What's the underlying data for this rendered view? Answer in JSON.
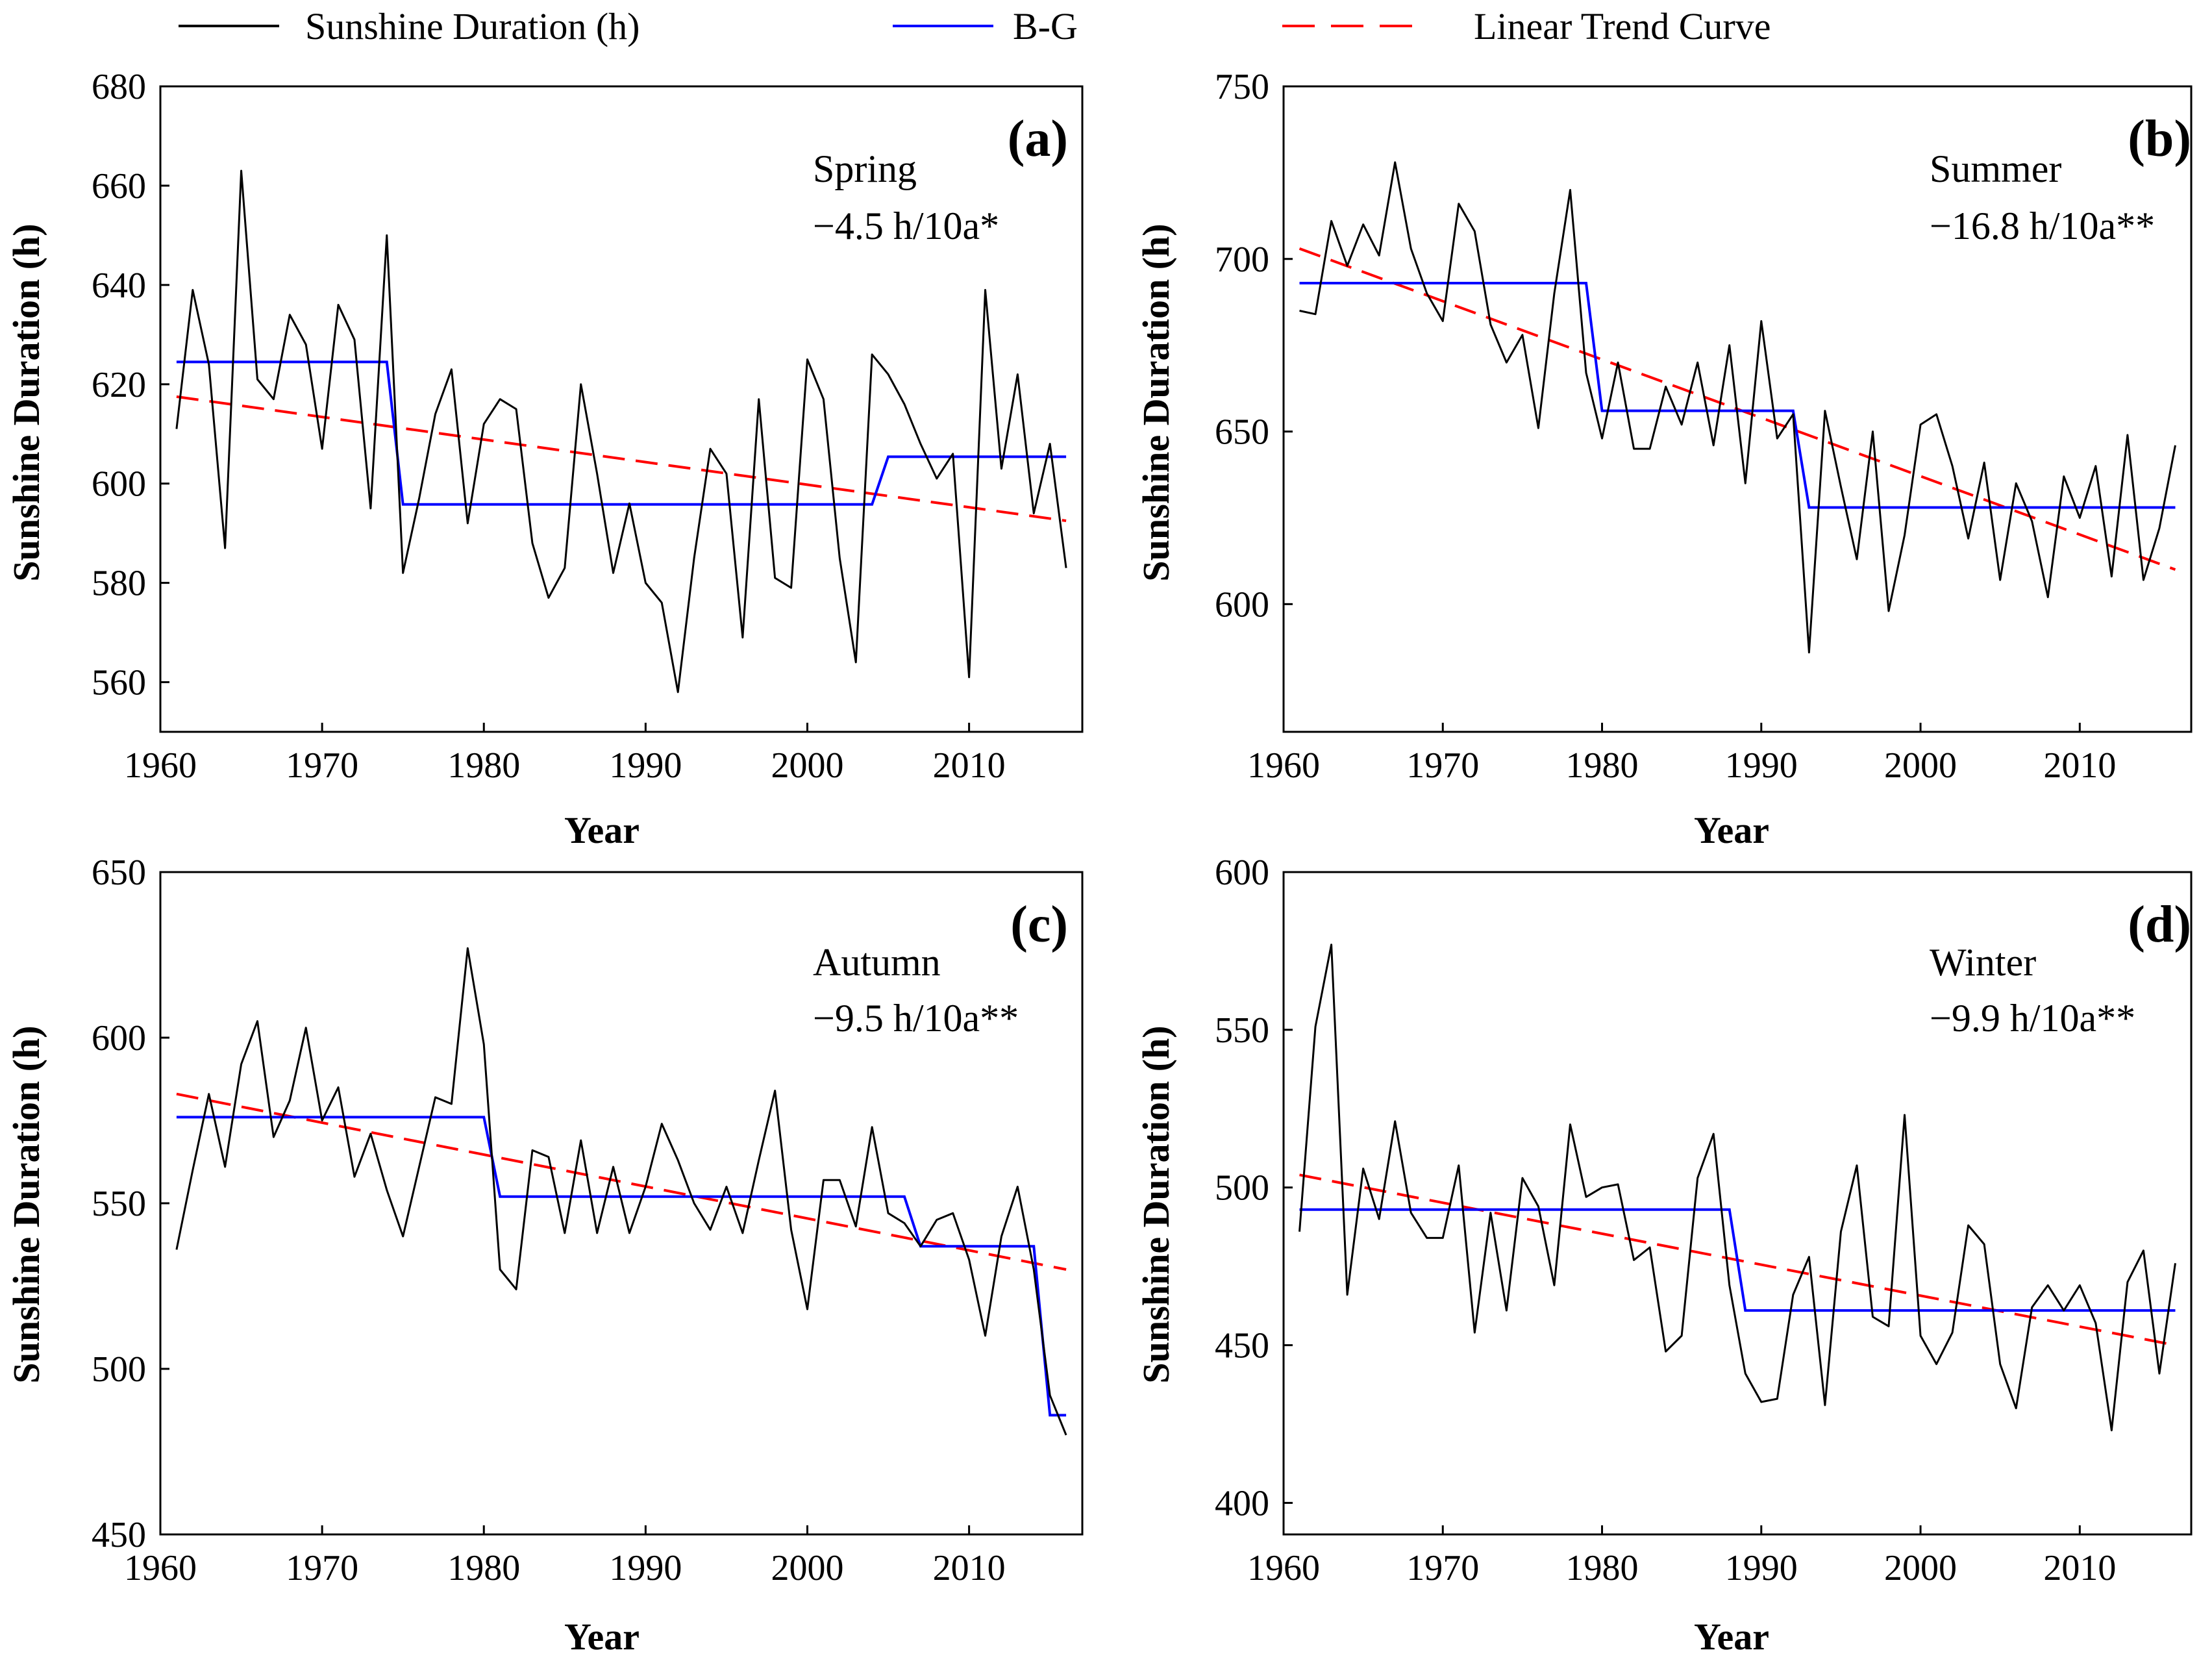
{
  "legend": {
    "items": [
      {
        "label": "Sunshine Duration (h)",
        "color": "#000000",
        "style": "solid"
      },
      {
        "label": "B-G",
        "color": "#0000ff",
        "style": "solid"
      },
      {
        "label": "Linear Trend Curve",
        "color": "#ff0000",
        "style": "dashed"
      }
    ]
  },
  "chart_data": [
    {
      "type": "line",
      "panel": "(a)",
      "season": "Spring",
      "trend_text": "−4.5 h/10a*",
      "xlabel": "Year",
      "ylabel": "Sunshine Duration (h)",
      "xlim": [
        1960,
        2017
      ],
      "ylim": [
        550,
        680
      ],
      "xticks": [
        1960,
        1970,
        1980,
        1990,
        2000,
        2010
      ],
      "yticks": [
        560,
        580,
        600,
        620,
        640,
        660,
        680
      ],
      "x": [
        1961,
        1962,
        1963,
        1964,
        1965,
        1966,
        1967,
        1968,
        1969,
        1970,
        1971,
        1972,
        1973,
        1974,
        1975,
        1976,
        1977,
        1978,
        1979,
        1980,
        1981,
        1982,
        1983,
        1984,
        1985,
        1986,
        1987,
        1988,
        1989,
        1990,
        1991,
        1992,
        1993,
        1994,
        1995,
        1996,
        1997,
        1998,
        1999,
        2000,
        2001,
        2002,
        2003,
        2004,
        2005,
        2006,
        2007,
        2008,
        2009,
        2010,
        2011,
        2012,
        2013,
        2014,
        2015,
        2016
      ],
      "series": [
        {
          "name": "Sunshine Duration (h)",
          "values": [
            611,
            639,
            624,
            587,
            663,
            621,
            617,
            634,
            628,
            607,
            636,
            629,
            595,
            650,
            582,
            597,
            614,
            623,
            592,
            612,
            617,
            615,
            588,
            577,
            583,
            620,
            602,
            582,
            596,
            580,
            576,
            558,
            585,
            607,
            602,
            569,
            617,
            581,
            579,
            625,
            617,
            585,
            564,
            626,
            622,
            616,
            608,
            601,
            606,
            561,
            639,
            603,
            622,
            594,
            608,
            583
          ]
        },
        {
          "name": "B-G",
          "steps": [
            {
              "from": 1961,
              "to": 1974,
              "value": 624.5
            },
            {
              "from": 1975,
              "to": 2004,
              "value": 595.8
            },
            {
              "from": 2005,
              "to": 2016,
              "value": 605.4
            }
          ]
        },
        {
          "name": "Linear Trend Curve",
          "start": [
            1961,
            617.5
          ],
          "end": [
            2016,
            592.5
          ]
        }
      ]
    },
    {
      "type": "line",
      "panel": "(b)",
      "season": "Summer",
      "trend_text": "−16.8 h/10a**",
      "xlabel": "Year",
      "ylabel": "Sunshine Duration (h)",
      "xlim": [
        1960,
        2017
      ],
      "ylim": [
        563,
        750
      ],
      "xticks": [
        1960,
        1970,
        1980,
        1990,
        2000,
        2010
      ],
      "yticks": [
        600,
        650,
        700,
        750
      ],
      "x": [
        1961,
        1962,
        1963,
        1964,
        1965,
        1966,
        1967,
        1968,
        1969,
        1970,
        1971,
        1972,
        1973,
        1974,
        1975,
        1976,
        1977,
        1978,
        1979,
        1980,
        1981,
        1982,
        1983,
        1984,
        1985,
        1986,
        1987,
        1988,
        1989,
        1990,
        1991,
        1992,
        1993,
        1994,
        1995,
        1996,
        1997,
        1998,
        1999,
        2000,
        2001,
        2002,
        2003,
        2004,
        2005,
        2006,
        2007,
        2008,
        2009,
        2010,
        2011,
        2012,
        2013,
        2014,
        2015,
        2016
      ],
      "series": [
        {
          "name": "Sunshine Duration (h)",
          "values": [
            685,
            684,
            711,
            698,
            710,
            701,
            728,
            703,
            690,
            682,
            716,
            708,
            681,
            670,
            678,
            651,
            690,
            720,
            667,
            648,
            670,
            645,
            645,
            663,
            652,
            670,
            646,
            675,
            635,
            682,
            648,
            655,
            586,
            656,
            634,
            613,
            650,
            598,
            620,
            652,
            655,
            640,
            619,
            641,
            607,
            635,
            624,
            602,
            637,
            625,
            640,
            608,
            649,
            607,
            622,
            646
          ]
        },
        {
          "name": "B-G",
          "steps": [
            {
              "from": 1961,
              "to": 1979,
              "value": 693
            },
            {
              "from": 1980,
              "to": 1992,
              "value": 656
            },
            {
              "from": 1993,
              "to": 2016,
              "value": 628
            }
          ]
        },
        {
          "name": "Linear Trend Curve",
          "start": [
            1961,
            703
          ],
          "end": [
            2016,
            610
          ]
        }
      ]
    },
    {
      "type": "line",
      "panel": "(c)",
      "season": "Autumn",
      "trend_text": "−9.5 h/10a**",
      "xlabel": "Year",
      "ylabel": "Sunshine Duration (h)",
      "xlim": [
        1960,
        2017
      ],
      "ylim": [
        450,
        650
      ],
      "xticks": [
        1960,
        1970,
        1980,
        1990,
        2000,
        2010
      ],
      "yticks": [
        450,
        500,
        550,
        600,
        650
      ],
      "x": [
        1961,
        1962,
        1963,
        1964,
        1965,
        1966,
        1967,
        1968,
        1969,
        1970,
        1971,
        1972,
        1973,
        1974,
        1975,
        1976,
        1977,
        1978,
        1979,
        1980,
        1981,
        1982,
        1983,
        1984,
        1985,
        1986,
        1987,
        1988,
        1989,
        1990,
        1991,
        1992,
        1993,
        1994,
        1995,
        1996,
        1997,
        1998,
        1999,
        2000,
        2001,
        2002,
        2003,
        2004,
        2005,
        2006,
        2007,
        2008,
        2009,
        2010,
        2011,
        2012,
        2013,
        2014,
        2015,
        2016
      ],
      "series": [
        {
          "name": "Sunshine Duration (h)",
          "values": [
            536,
            560,
            583,
            561,
            592,
            605,
            570,
            581,
            603,
            575,
            585,
            558,
            571,
            554,
            540,
            561,
            582,
            580,
            627,
            598,
            530,
            524,
            566,
            564,
            541,
            569,
            541,
            561,
            541,
            555,
            574,
            563,
            550,
            542,
            555,
            541,
            563,
            584,
            542,
            518,
            557,
            557,
            543,
            573,
            547,
            544,
            537,
            545,
            547,
            533,
            510,
            540,
            555,
            530,
            492,
            480
          ]
        },
        {
          "name": "B-G",
          "steps": [
            {
              "from": 1961,
              "to": 1980,
              "value": 576
            },
            {
              "from": 1981,
              "to": 2006,
              "value": 552
            },
            {
              "from": 2007,
              "to": 2014,
              "value": 537
            },
            {
              "from": 2015,
              "to": 2016,
              "value": 486
            }
          ]
        },
        {
          "name": "Linear Trend Curve",
          "start": [
            1961,
            583
          ],
          "end": [
            2016,
            530
          ]
        }
      ]
    },
    {
      "type": "line",
      "panel": "(d)",
      "season": "Winter",
      "trend_text": "−9.9 h/10a**",
      "xlabel": "Year",
      "ylabel": "Sunshine Duration (h)",
      "xlim": [
        1960,
        2017
      ],
      "ylim": [
        390,
        600
      ],
      "xticks": [
        1960,
        1970,
        1980,
        1990,
        2000,
        2010
      ],
      "yticks": [
        400,
        450,
        500,
        550,
        600
      ],
      "x": [
        1961,
        1962,
        1963,
        1964,
        1965,
        1966,
        1967,
        1968,
        1969,
        1970,
        1971,
        1972,
        1973,
        1974,
        1975,
        1976,
        1977,
        1978,
        1979,
        1980,
        1981,
        1982,
        1983,
        1984,
        1985,
        1986,
        1987,
        1988,
        1989,
        1990,
        1991,
        1992,
        1993,
        1994,
        1995,
        1996,
        1997,
        1998,
        1999,
        2000,
        2001,
        2002,
        2003,
        2004,
        2005,
        2006,
        2007,
        2008,
        2009,
        2010,
        2011,
        2012,
        2013,
        2014,
        2015,
        2016
      ],
      "series": [
        {
          "name": "Sunshine Duration (h)",
          "values": [
            486,
            551,
            577,
            466,
            506,
            490,
            521,
            492,
            484,
            484,
            507,
            454,
            492,
            461,
            503,
            494,
            469,
            520,
            497,
            500,
            501,
            477,
            481,
            448,
            453,
            503,
            517,
            469,
            441,
            432,
            433,
            466,
            478,
            431,
            486,
            507,
            459,
            456,
            523,
            453,
            444,
            454,
            488,
            482,
            444,
            430,
            462,
            469,
            461,
            469,
            457,
            423,
            470,
            480,
            441,
            476
          ]
        },
        {
          "name": "B-G",
          "steps": [
            {
              "from": 1961,
              "to": 1988,
              "value": 493
            },
            {
              "from": 1989,
              "to": 2016,
              "value": 461
            }
          ]
        },
        {
          "name": "Linear Trend Curve",
          "start": [
            1961,
            504
          ],
          "end": [
            2016,
            450
          ]
        }
      ]
    }
  ]
}
